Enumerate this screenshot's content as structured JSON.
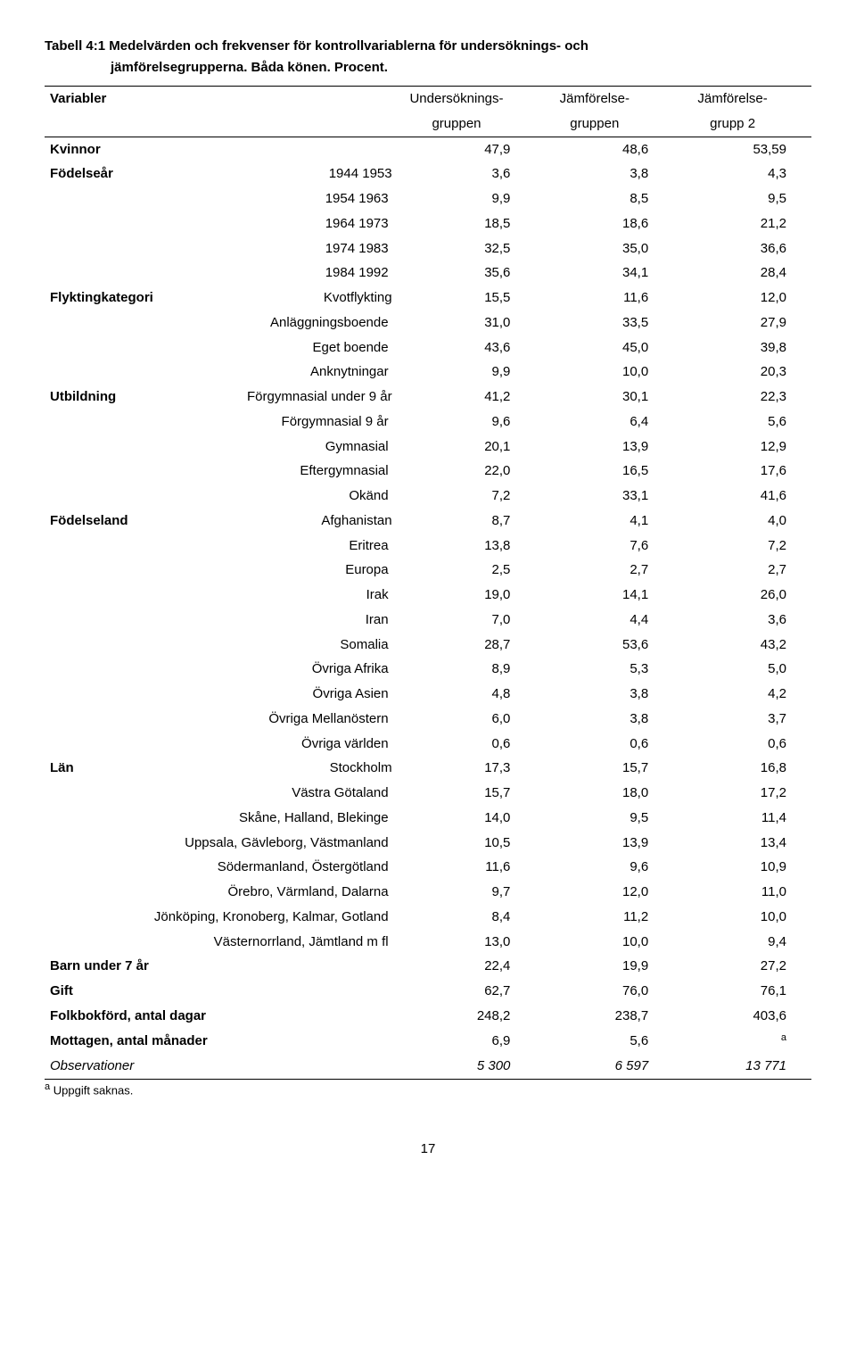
{
  "title_line1": "Tabell 4:1 Medelvärden och frekvenser för kontrollvariablerna för undersöknings- och",
  "title_line2": "jämförelsegrupperna. Båda könen. Procent.",
  "header": {
    "variabler": "Variabler",
    "col1a": "Undersöknings-",
    "col1b": "gruppen",
    "col2a": "Jämförelse-",
    "col2b": "gruppen",
    "col3a": "Jämförelse-",
    "col3b": "grupp 2"
  },
  "rows": [
    {
      "label": "Kvinnor",
      "bold": true,
      "align": "left",
      "c1": "47,9",
      "c2": "48,6",
      "c3": "53,59"
    },
    {
      "label": "Födelseår",
      "bold": true,
      "align": "left",
      "sub": "1944 1953",
      "c1": "3,6",
      "c2": "3,8",
      "c3": "4,3"
    },
    {
      "label": "",
      "sub": "1954 1963",
      "c1": "9,9",
      "c2": "8,5",
      "c3": "9,5"
    },
    {
      "label": "",
      "sub": "1964 1973",
      "c1": "18,5",
      "c2": "18,6",
      "c3": "21,2"
    },
    {
      "label": "",
      "sub": "1974 1983",
      "c1": "32,5",
      "c2": "35,0",
      "c3": "36,6"
    },
    {
      "label": "",
      "sub": "1984 1992",
      "c1": "35,6",
      "c2": "34,1",
      "c3": "28,4"
    },
    {
      "label": "Flyktingkategori",
      "bold": true,
      "align": "left",
      "sub": "Kvotflykting",
      "c1": "15,5",
      "c2": "11,6",
      "c3": "12,0"
    },
    {
      "label": "",
      "sub": "Anläggningsboende",
      "c1": "31,0",
      "c2": "33,5",
      "c3": "27,9"
    },
    {
      "label": "",
      "sub": "Eget boende",
      "c1": "43,6",
      "c2": "45,0",
      "c3": "39,8"
    },
    {
      "label": "",
      "sub": "Anknytningar",
      "c1": "9,9",
      "c2": "10,0",
      "c3": "20,3"
    },
    {
      "label": "Utbildning",
      "bold": true,
      "align": "left",
      "sub": "Förgymnasial under 9 år",
      "c1": "41,2",
      "c2": "30,1",
      "c3": "22,3"
    },
    {
      "label": "",
      "sub": "Förgymnasial 9 år",
      "c1": "9,6",
      "c2": "6,4",
      "c3": "5,6"
    },
    {
      "label": "",
      "sub": "Gymnasial",
      "c1": "20,1",
      "c2": "13,9",
      "c3": "12,9"
    },
    {
      "label": "",
      "sub": "Eftergymnasial",
      "c1": "22,0",
      "c2": "16,5",
      "c3": "17,6"
    },
    {
      "label": "",
      "sub": "Okänd",
      "c1": "7,2",
      "c2": "33,1",
      "c3": "41,6"
    },
    {
      "label": "Födelseland",
      "bold": true,
      "align": "left",
      "sub": "Afghanistan",
      "c1": "8,7",
      "c2": "4,1",
      "c3": "4,0"
    },
    {
      "label": "",
      "sub": "Eritrea",
      "c1": "13,8",
      "c2": "7,6",
      "c3": "7,2"
    },
    {
      "label": "",
      "sub": "Europa",
      "c1": "2,5",
      "c2": "2,7",
      "c3": "2,7"
    },
    {
      "label": "",
      "sub": "Irak",
      "c1": "19,0",
      "c2": "14,1",
      "c3": "26,0"
    },
    {
      "label": "",
      "sub": "Iran",
      "c1": "7,0",
      "c2": "4,4",
      "c3": "3,6"
    },
    {
      "label": "",
      "sub": "Somalia",
      "c1": "28,7",
      "c2": "53,6",
      "c3": "43,2"
    },
    {
      "label": "",
      "sub": "Övriga Afrika",
      "c1": "8,9",
      "c2": "5,3",
      "c3": "5,0"
    },
    {
      "label": "",
      "sub": "Övriga Asien",
      "c1": "4,8",
      "c2": "3,8",
      "c3": "4,2"
    },
    {
      "label": "",
      "sub": "Övriga Mellanöstern",
      "c1": "6,0",
      "c2": "3,8",
      "c3": "3,7"
    },
    {
      "label": "",
      "sub": "Övriga världen",
      "c1": "0,6",
      "c2": "0,6",
      "c3": "0,6"
    },
    {
      "label": "Län",
      "bold": true,
      "align": "left",
      "sub": "Stockholm",
      "c1": "17,3",
      "c2": "15,7",
      "c3": "16,8"
    },
    {
      "label": "",
      "sub": "Västra Götaland",
      "c1": "15,7",
      "c2": "18,0",
      "c3": "17,2"
    },
    {
      "label": "",
      "sub": "Skåne, Halland, Blekinge",
      "c1": "14,0",
      "c2": "9,5",
      "c3": "11,4"
    },
    {
      "label": "",
      "sub": "Uppsala, Gävleborg, Västmanland",
      "c1": "10,5",
      "c2": "13,9",
      "c3": "13,4"
    },
    {
      "label": "",
      "sub": "Södermanland, Östergötland",
      "c1": "11,6",
      "c2": "9,6",
      "c3": "10,9"
    },
    {
      "label": "",
      "sub": "Örebro, Värmland, Dalarna",
      "c1": "9,7",
      "c2": "12,0",
      "c3": "11,0"
    },
    {
      "label": "",
      "sub": "Jönköping, Kronoberg, Kalmar, Gotland",
      "c1": "8,4",
      "c2": "11,2",
      "c3": "10,0"
    },
    {
      "label": "",
      "sub": "Västernorrland, Jämtland m fl",
      "c1": "13,0",
      "c2": "10,0",
      "c3": "9,4"
    },
    {
      "label": "Barn under 7 år",
      "bold": true,
      "align": "left",
      "c1": "22,4",
      "c2": "19,9",
      "c3": "27,2"
    },
    {
      "label": "Gift",
      "bold": true,
      "align": "left",
      "c1": "62,7",
      "c2": "76,0",
      "c3": "76,1"
    },
    {
      "label": "Folkbokförd, antal dagar",
      "bold": true,
      "align": "left",
      "c1": "248,2",
      "c2": "238,7",
      "c3": "403,6"
    },
    {
      "label": "Mottagen, antal månader",
      "bold": true,
      "align": "left",
      "c1": "6,9",
      "c2": "5,6",
      "c3": "a",
      "c3sup": true
    },
    {
      "label": "Observationer",
      "italic": true,
      "align": "left",
      "c1": "5 300",
      "c2": "6 597",
      "c3": "13 771",
      "ic": true,
      "last": true
    }
  ],
  "footnote_sup": "a",
  "footnote_text": " Uppgift saknas.",
  "page_number": "17"
}
